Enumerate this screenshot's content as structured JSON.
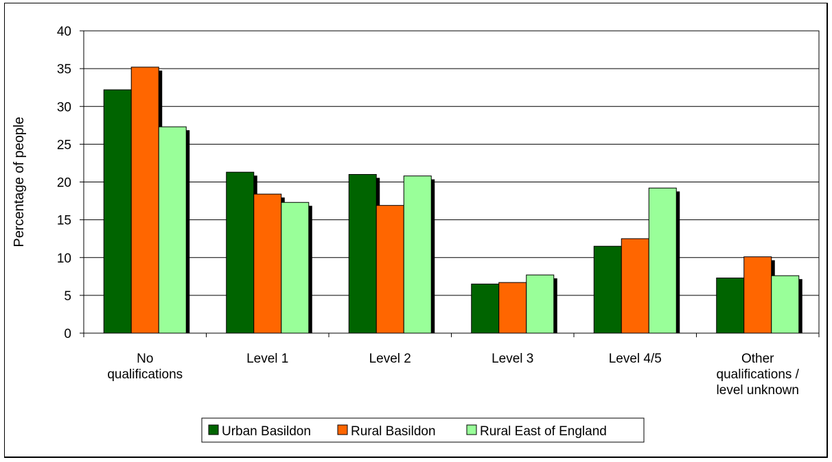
{
  "chart_data": {
    "type": "bar",
    "title": "",
    "xlabel": "",
    "ylabel": "Percentage of people",
    "ylim": [
      0,
      40
    ],
    "yticks": [
      0,
      5,
      10,
      15,
      20,
      25,
      30,
      35,
      40
    ],
    "grid": true,
    "legend_position": "bottom",
    "categories": [
      [
        "No",
        "qualifications"
      ],
      [
        "Level 1"
      ],
      [
        "Level 2"
      ],
      [
        "Level 3"
      ],
      [
        "Level 4/5"
      ],
      [
        "Other",
        "qualifications /",
        "level unknown"
      ]
    ],
    "series": [
      {
        "name": "Urban Basildon",
        "color": "#006400",
        "values": [
          32.2,
          21.3,
          21.0,
          6.5,
          11.5,
          7.3
        ]
      },
      {
        "name": "Rural Basildon",
        "color": "#ff6600",
        "values": [
          35.2,
          18.4,
          16.9,
          6.7,
          12.5,
          10.1
        ]
      },
      {
        "name": "Rural East of England",
        "color": "#99ff99",
        "values": [
          27.3,
          17.3,
          20.8,
          7.7,
          19.2,
          7.6
        ]
      }
    ]
  }
}
